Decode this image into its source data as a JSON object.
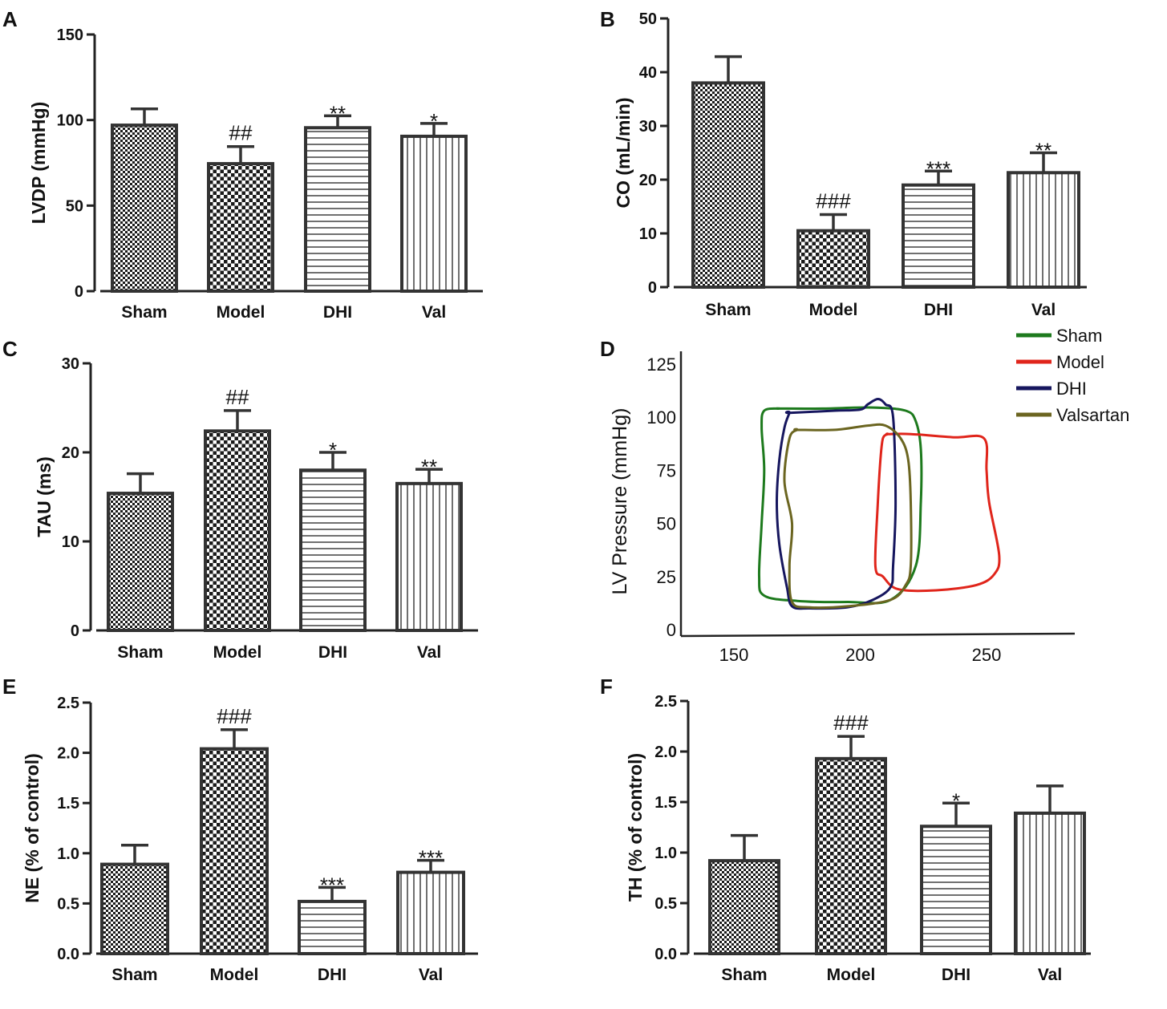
{
  "colors": {
    "bar_stroke": "#333333",
    "axis": "#222222",
    "sham": "#1d7a1d",
    "model": "#e0251b",
    "dhi": "#16165e",
    "valsartan": "#6b6520"
  },
  "chart_data": [
    {
      "panel": "A",
      "type": "bar",
      "categories": [
        "Sham",
        "Model",
        "DHI",
        "Val"
      ],
      "values": [
        97,
        74.5,
        95.5,
        90.5
      ],
      "errors": [
        9.5,
        10,
        7,
        7.5
      ],
      "patterns": [
        "checker-fine",
        "checker",
        "horizontal",
        "vertical"
      ],
      "significance": [
        "",
        "##",
        "**",
        "*"
      ],
      "ylabel": "LVDP (mmHg)",
      "ylim": [
        0,
        150
      ],
      "yticks": [
        0,
        50,
        100,
        150
      ],
      "ytick_labels": [
        "0",
        "50",
        "100",
        "150"
      ]
    },
    {
      "panel": "B",
      "type": "bar",
      "categories": [
        "Sham",
        "Model",
        "DHI",
        "Val"
      ],
      "values": [
        38,
        10.5,
        19,
        21.3
      ],
      "errors": [
        4.9,
        3,
        2.6,
        3.7
      ],
      "patterns": [
        "checker-fine",
        "checker",
        "horizontal",
        "vertical"
      ],
      "significance": [
        "",
        "###",
        "***",
        "**"
      ],
      "ylabel": "CO (mL/min)",
      "ylim": [
        0,
        50
      ],
      "yticks": [
        0,
        10,
        20,
        30,
        40,
        50
      ],
      "ytick_labels": [
        "0",
        "10",
        "20",
        "30",
        "40",
        "50"
      ]
    },
    {
      "panel": "C",
      "type": "bar",
      "categories": [
        "Sham",
        "Model",
        "DHI",
        "Val"
      ],
      "values": [
        15.4,
        22.4,
        18,
        16.5
      ],
      "errors": [
        2.2,
        2.3,
        2,
        1.6
      ],
      "patterns": [
        "checker-fine",
        "checker",
        "horizontal",
        "vertical"
      ],
      "significance": [
        "",
        "##",
        "*",
        "**"
      ],
      "ylabel": "TAU (ms)",
      "ylim": [
        0,
        30
      ],
      "yticks": [
        0,
        10,
        20,
        30
      ],
      "ytick_labels": [
        "0",
        "10",
        "20",
        "30"
      ]
    },
    {
      "panel": "D",
      "type": "line",
      "xlabel": "",
      "ylabel": "LV Pressure (mmHg)",
      "xlim": [
        125,
        280
      ],
      "ylim": [
        0,
        125
      ],
      "xticks": [
        150,
        200,
        250
      ],
      "xtick_labels": [
        "150",
        "200",
        "250"
      ],
      "yticks": [
        0,
        25,
        50,
        75,
        100,
        125
      ],
      "ytick_labels": [
        "0",
        "25",
        "50",
        "75",
        "100",
        "125"
      ],
      "legend_position": "top-right",
      "series": [
        {
          "name": "Sham",
          "color_key": "sham",
          "x": [
            168,
            185,
            205,
            218,
            222,
            224,
            224,
            222,
            212,
            195,
            175,
            162,
            160,
            161,
            162,
            161,
            162,
            168
          ],
          "y": [
            104,
            104,
            104.5,
            103,
            98,
            85,
            60,
            30,
            14,
            13,
            13.5,
            16,
            25,
            50,
            75,
            95,
            103,
            104
          ]
        },
        {
          "name": "Model",
          "color_key": "model",
          "x": [
            211,
            220,
            237,
            249,
            250,
            251,
            255,
            253,
            246,
            230,
            215,
            209,
            206,
            207,
            208,
            209,
            211
          ],
          "y": [
            92,
            92,
            90.5,
            90,
            75,
            60,
            35,
            26,
            21,
            18.5,
            19,
            25,
            30,
            60,
            80,
            90,
            92
          ]
        },
        {
          "name": "DHI",
          "color_key": "dhi",
          "x": [
            172,
            190,
            200,
            203,
            207,
            210,
            213,
            214,
            213,
            212,
            205,
            195,
            180,
            173,
            171,
            168,
            167,
            168,
            170,
            172
          ],
          "y": [
            102,
            103,
            103.5,
            106,
            108.5,
            106,
            100,
            60,
            30,
            20,
            14,
            10.5,
            10,
            11,
            20,
            40,
            60,
            80,
            95,
            102
          ]
        },
        {
          "name": "Valsartan",
          "color_key": "valsartan",
          "x": [
            175,
            190,
            203,
            210,
            216,
            219,
            220,
            220,
            218,
            212,
            195,
            180,
            173,
            172,
            173,
            170,
            172,
            175
          ],
          "y": [
            94,
            94,
            96,
            96,
            90,
            80,
            60,
            30,
            21,
            14,
            11,
            10.5,
            13,
            30,
            50,
            70,
            90,
            94
          ]
        }
      ]
    },
    {
      "panel": "E",
      "type": "bar",
      "categories": [
        "Sham",
        "Model",
        "DHI",
        "Val"
      ],
      "values": [
        0.89,
        2.04,
        0.52,
        0.81
      ],
      "errors": [
        0.19,
        0.19,
        0.14,
        0.12
      ],
      "patterns": [
        "checker-fine",
        "checker",
        "horizontal",
        "vertical"
      ],
      "significance": [
        "",
        "###",
        "***",
        "***"
      ],
      "ylabel": "NE (% of control)",
      "ylim": [
        0,
        2.5
      ],
      "yticks": [
        0,
        0.5,
        1,
        1.5,
        2,
        2.5
      ],
      "ytick_labels": [
        "0.0",
        "0.5",
        "1.0",
        "1.5",
        "2.0",
        "2.5"
      ]
    },
    {
      "panel": "F",
      "type": "bar",
      "categories": [
        "Sham",
        "Model",
        "DHI",
        "Val"
      ],
      "values": [
        0.92,
        1.93,
        1.26,
        1.39
      ],
      "errors": [
        0.25,
        0.22,
        0.23,
        0.27
      ],
      "patterns": [
        "checker-fine",
        "checker",
        "horizontal",
        "vertical"
      ],
      "significance": [
        "",
        "###",
        "*",
        ""
      ],
      "ylabel": "TH (% of control)",
      "ylim": [
        0,
        2.5
      ],
      "yticks": [
        0,
        0.5,
        1,
        1.5,
        2,
        2.5
      ],
      "ytick_labels": [
        "0.0",
        "0.5",
        "1.0",
        "1.5",
        "2.0",
        "2.5"
      ]
    }
  ]
}
